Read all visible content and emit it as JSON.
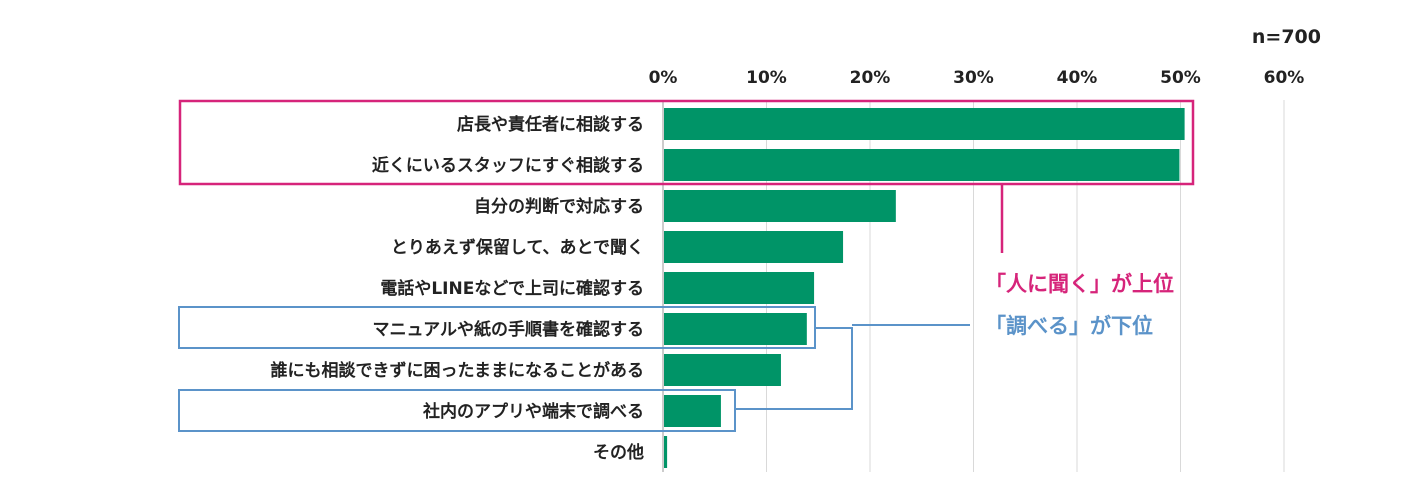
{
  "chart_data": {
    "type": "bar",
    "orientation": "horizontal",
    "sample_size": "n=700",
    "xlim": [
      0,
      60
    ],
    "ticks": [
      "0%",
      "10%",
      "20%",
      "30%",
      "40%",
      "50%",
      "60%"
    ],
    "tick_values": [
      0,
      10,
      20,
      30,
      40,
      50,
      60
    ],
    "grid": true,
    "categories": [
      "店長や責任者に相談する",
      "近くにいるスタッフにすぐ相談する",
      "自分の判断で対応する",
      "とりあえず保留して、あとで聞く",
      "電話やLINEなどで上司に確認する",
      "マニュアルや紙の手順書を確認する",
      "誰にも相談できずに困ったままになることがある",
      "社内のアプリや端末で調べる",
      "その他"
    ],
    "values": [
      50.3,
      49.8,
      22.4,
      17.3,
      14.5,
      13.8,
      11.3,
      5.5,
      0.3
    ],
    "bar_color": "#009467",
    "annotations": [
      {
        "text": "「人に聞く」が上位",
        "color": "#d6247a",
        "categories": [
          0,
          1
        ]
      },
      {
        "text": "「調べる」が下位",
        "color": "#5b93c9",
        "categories": [
          5,
          7
        ]
      }
    ]
  }
}
